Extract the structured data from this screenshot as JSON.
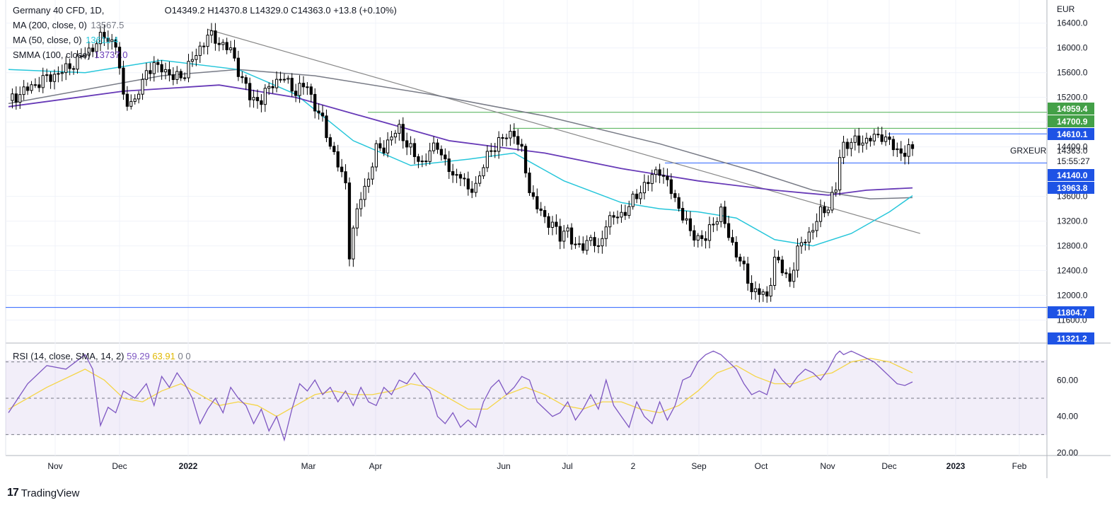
{
  "header": {
    "symbol": "Germany 40 CFD, 1D,",
    "open": "O14349.2",
    "high": "H14370.8",
    "low": "L14329.0",
    "close": "C14363.0",
    "change": "+13.8 (+0.10%)"
  },
  "indicators": [
    {
      "label": "MA (200, close, 0)",
      "value": "13567.5",
      "color": "#787b86"
    },
    {
      "label": "MA (50, close, 0)",
      "value": "13611.4",
      "color": "#26c6da"
    },
    {
      "label": "SMMA (100, close)",
      "value": "13737.0",
      "color": "#673ab7"
    }
  ],
  "rsi_legend": {
    "label": "RSI (14, close, SMA, 14, 2)",
    "rsi": "59.29",
    "sma": "63.91",
    "extra": "0  0"
  },
  "currency": "EUR",
  "symbol_tag": "GRXEUR",
  "countdown": "15:55:27",
  "last_price": "14363.0",
  "brand": "TradingView",
  "colors": {
    "ma200": "#787b86",
    "ma50": "#26c6da",
    "smma100": "#673ab7",
    "rsi": "#7e57c2",
    "rsi_sma": "#f5d547",
    "green_level": "#4caf50",
    "blue_level": "#2962ff",
    "up": "#ffffff",
    "down": "#000000"
  },
  "chart_data": {
    "type": "candlestick",
    "ylim": [
      11400,
      16500
    ],
    "y_ticks": [
      "16400.0",
      "16000.0",
      "15600.0",
      "15200.0",
      "14800.0",
      "14400.0",
      "13600.0",
      "13200.0",
      "12800.0",
      "12400.0",
      "12000.0",
      "11600.0"
    ],
    "x_ticks": [
      "Nov",
      "Dec",
      "2022",
      "Mar",
      "Apr",
      "Jun",
      "Jul",
      "2",
      "Sep",
      "Oct",
      "Nov",
      "Dec",
      "2023",
      "Feb"
    ],
    "levels": [
      {
        "value": 14959.4,
        "label": "14959.4",
        "color": "green"
      },
      {
        "value": 14700.9,
        "label": "14700.9",
        "color": "green"
      },
      {
        "value": 14610.1,
        "label": "14610.1",
        "color": "blue"
      },
      {
        "value": 14140.0,
        "label": "14140.0",
        "color": "blue"
      },
      {
        "value": 13963.8,
        "label": "13963.8",
        "color": "blue"
      },
      {
        "value": 11804.7,
        "label": "11804.7",
        "color": "blue"
      },
      {
        "value": 11321.2,
        "label": "11321.2",
        "color": "blue"
      }
    ],
    "close_path": [
      [
        0,
        15150
      ],
      [
        8,
        15450
      ],
      [
        15,
        15650
      ],
      [
        20,
        15900
      ],
      [
        25,
        16200
      ],
      [
        28,
        16050
      ],
      [
        30,
        15200
      ],
      [
        33,
        15100
      ],
      [
        36,
        15650
      ],
      [
        40,
        15700
      ],
      [
        43,
        15500
      ],
      [
        46,
        15600
      ],
      [
        49,
        15900
      ],
      [
        52,
        16200
      ],
      [
        55,
        16100
      ],
      [
        58,
        15950
      ],
      [
        61,
        15500
      ],
      [
        63,
        15200
      ],
      [
        66,
        15150
      ],
      [
        69,
        15450
      ],
      [
        72,
        15500
      ],
      [
        75,
        15300
      ],
      [
        78,
        15400
      ],
      [
        80,
        15050
      ],
      [
        82,
        14800
      ],
      [
        84,
        14450
      ],
      [
        86,
        14100
      ],
      [
        88,
        13800
      ],
      [
        89,
        12700
      ],
      [
        90,
        13050
      ],
      [
        92,
        13600
      ],
      [
        94,
        13900
      ],
      [
        96,
        14350
      ],
      [
        98,
        14400
      ],
      [
        100,
        14550
      ],
      [
        102,
        14700
      ],
      [
        104,
        14450
      ],
      [
        106,
        14250
      ],
      [
        108,
        14150
      ],
      [
        110,
        14300
      ],
      [
        112,
        14450
      ],
      [
        114,
        14150
      ],
      [
        116,
        13900
      ],
      [
        118,
        14000
      ],
      [
        120,
        13650
      ],
      [
        122,
        13800
      ],
      [
        124,
        14100
      ],
      [
        126,
        14350
      ],
      [
        128,
        14500
      ],
      [
        130,
        14550
      ],
      [
        132,
        14650
      ],
      [
        134,
        14300
      ],
      [
        136,
        13700
      ],
      [
        138,
        13450
      ],
      [
        140,
        13200
      ],
      [
        142,
        13200
      ],
      [
        144,
        12900
      ],
      [
        146,
        13100
      ],
      [
        148,
        12750
      ],
      [
        150,
        12800
      ],
      [
        152,
        12950
      ],
      [
        154,
        12700
      ],
      [
        156,
        13200
      ],
      [
        158,
        13250
      ],
      [
        160,
        13300
      ],
      [
        162,
        13450
      ],
      [
        164,
        13600
      ],
      [
        166,
        13800
      ],
      [
        168,
        13900
      ],
      [
        170,
        14050
      ],
      [
        172,
        13800
      ],
      [
        174,
        13550
      ],
      [
        176,
        13300
      ],
      [
        178,
        13000
      ],
      [
        180,
        12950
      ],
      [
        182,
        12900
      ],
      [
        184,
        13200
      ],
      [
        186,
        13350
      ],
      [
        188,
        12950
      ],
      [
        190,
        12700
      ],
      [
        192,
        12400
      ],
      [
        194,
        12100
      ],
      [
        196,
        12050
      ],
      [
        198,
        11950
      ],
      [
        200,
        12600
      ],
      [
        202,
        12400
      ],
      [
        204,
        12250
      ],
      [
        206,
        12700
      ],
      [
        208,
        12950
      ],
      [
        210,
        13050
      ],
      [
        212,
        13350
      ],
      [
        214,
        13450
      ],
      [
        216,
        13700
      ],
      [
        217,
        14250
      ],
      [
        218,
        14450
      ],
      [
        220,
        14450
      ],
      [
        222,
        14500
      ],
      [
        224,
        14500
      ],
      [
        226,
        14550
      ],
      [
        228,
        14600
      ],
      [
        230,
        14450
      ],
      [
        232,
        14350
      ],
      [
        234,
        14300
      ],
      [
        236,
        14363
      ]
    ],
    "ma200": [
      [
        0,
        15100
      ],
      [
        40,
        15550
      ],
      [
        60,
        15650
      ],
      [
        80,
        15550
      ],
      [
        110,
        15250
      ],
      [
        140,
        14900
      ],
      [
        170,
        14450
      ],
      [
        195,
        14000
      ],
      [
        210,
        13700
      ],
      [
        225,
        13560
      ],
      [
        236,
        13580
      ]
    ],
    "ma50": [
      [
        0,
        15650
      ],
      [
        20,
        15600
      ],
      [
        40,
        15800
      ],
      [
        60,
        15650
      ],
      [
        75,
        15250
      ],
      [
        90,
        14500
      ],
      [
        105,
        14100
      ],
      [
        120,
        14200
      ],
      [
        132,
        14300
      ],
      [
        145,
        13850
      ],
      [
        160,
        13500
      ],
      [
        170,
        13400
      ],
      [
        180,
        13350
      ],
      [
        190,
        13250
      ],
      [
        200,
        12900
      ],
      [
        210,
        12800
      ],
      [
        220,
        13000
      ],
      [
        230,
        13350
      ],
      [
        236,
        13611
      ]
    ],
    "smma100": [
      [
        0,
        15050
      ],
      [
        30,
        15300
      ],
      [
        55,
        15400
      ],
      [
        75,
        15200
      ],
      [
        95,
        14850
      ],
      [
        115,
        14500
      ],
      [
        140,
        14300
      ],
      [
        160,
        14050
      ],
      [
        180,
        13850
      ],
      [
        200,
        13700
      ],
      [
        214,
        13620
      ],
      [
        224,
        13700
      ],
      [
        236,
        13737
      ]
    ],
    "trendline": [
      [
        52,
        16300
      ],
      [
        238,
        13000
      ]
    ],
    "rsi_ylim": [
      20,
      80
    ],
    "rsi_ticks": [
      "60.00",
      "40.00",
      "20.00"
    ],
    "rsi_bands": [
      70,
      50,
      30
    ],
    "rsi": [
      [
        0,
        42
      ],
      [
        5,
        58
      ],
      [
        10,
        68
      ],
      [
        15,
        66
      ],
      [
        20,
        74
      ],
      [
        22,
        66
      ],
      [
        24,
        35
      ],
      [
        26,
        45
      ],
      [
        28,
        42
      ],
      [
        30,
        54
      ],
      [
        33,
        50
      ],
      [
        36,
        58
      ],
      [
        38,
        46
      ],
      [
        40,
        62
      ],
      [
        42,
        56
      ],
      [
        44,
        64
      ],
      [
        46,
        58
      ],
      [
        48,
        50
      ],
      [
        50,
        36
      ],
      [
        52,
        44
      ],
      [
        54,
        50
      ],
      [
        56,
        42
      ],
      [
        58,
        56
      ],
      [
        60,
        50
      ],
      [
        62,
        46
      ],
      [
        64,
        36
      ],
      [
        66,
        44
      ],
      [
        68,
        32
      ],
      [
        70,
        40
      ],
      [
        72,
        27
      ],
      [
        74,
        44
      ],
      [
        76,
        58
      ],
      [
        78,
        54
      ],
      [
        80,
        60
      ],
      [
        82,
        52
      ],
      [
        84,
        56
      ],
      [
        86,
        48
      ],
      [
        88,
        54
      ],
      [
        90,
        46
      ],
      [
        92,
        56
      ],
      [
        94,
        48
      ],
      [
        96,
        46
      ],
      [
        98,
        56
      ],
      [
        100,
        52
      ],
      [
        102,
        60
      ],
      [
        104,
        58
      ],
      [
        106,
        64
      ],
      [
        108,
        58
      ],
      [
        110,
        54
      ],
      [
        112,
        40
      ],
      [
        114,
        36
      ],
      [
        116,
        42
      ],
      [
        118,
        34
      ],
      [
        120,
        38
      ],
      [
        122,
        34
      ],
      [
        124,
        48
      ],
      [
        126,
        56
      ],
      [
        128,
        60
      ],
      [
        130,
        52
      ],
      [
        132,
        56
      ],
      [
        134,
        62
      ],
      [
        136,
        60
      ],
      [
        138,
        48
      ],
      [
        140,
        44
      ],
      [
        142,
        40
      ],
      [
        144,
        42
      ],
      [
        146,
        48
      ],
      [
        148,
        38
      ],
      [
        150,
        44
      ],
      [
        152,
        52
      ],
      [
        154,
        44
      ],
      [
        156,
        60
      ],
      [
        158,
        46
      ],
      [
        160,
        40
      ],
      [
        162,
        34
      ],
      [
        164,
        48
      ],
      [
        166,
        40
      ],
      [
        168,
        36
      ],
      [
        170,
        48
      ],
      [
        172,
        38
      ],
      [
        174,
        46
      ],
      [
        176,
        60
      ],
      [
        178,
        62
      ],
      [
        180,
        70
      ],
      [
        182,
        74
      ],
      [
        184,
        76
      ],
      [
        186,
        74
      ],
      [
        188,
        70
      ],
      [
        190,
        66
      ],
      [
        192,
        58
      ],
      [
        194,
        52
      ],
      [
        196,
        54
      ],
      [
        198,
        52
      ],
      [
        200,
        66
      ],
      [
        202,
        60
      ],
      [
        204,
        56
      ],
      [
        206,
        62
      ],
      [
        208,
        66
      ],
      [
        210,
        64
      ],
      [
        212,
        60
      ],
      [
        214,
        66
      ],
      [
        216,
        74
      ],
      [
        217,
        76
      ],
      [
        218,
        74
      ],
      [
        220,
        76
      ],
      [
        222,
        74
      ],
      [
        224,
        72
      ],
      [
        226,
        70
      ],
      [
        228,
        66
      ],
      [
        230,
        62
      ],
      [
        232,
        58
      ],
      [
        234,
        57
      ],
      [
        236,
        59
      ]
    ],
    "rsi_sma": [
      [
        0,
        44
      ],
      [
        10,
        56
      ],
      [
        20,
        66
      ],
      [
        25,
        60
      ],
      [
        30,
        50
      ],
      [
        35,
        48
      ],
      [
        40,
        54
      ],
      [
        45,
        58
      ],
      [
        50,
        52
      ],
      [
        55,
        46
      ],
      [
        60,
        48
      ],
      [
        65,
        46
      ],
      [
        70,
        40
      ],
      [
        75,
        46
      ],
      [
        80,
        52
      ],
      [
        85,
        54
      ],
      [
        90,
        52
      ],
      [
        95,
        52
      ],
      [
        100,
        54
      ],
      [
        105,
        58
      ],
      [
        110,
        56
      ],
      [
        115,
        50
      ],
      [
        120,
        44
      ],
      [
        125,
        44
      ],
      [
        130,
        52
      ],
      [
        135,
        56
      ],
      [
        140,
        52
      ],
      [
        145,
        46
      ],
      [
        150,
        44
      ],
      [
        155,
        48
      ],
      [
        160,
        48
      ],
      [
        165,
        44
      ],
      [
        170,
        42
      ],
      [
        175,
        46
      ],
      [
        180,
        54
      ],
      [
        185,
        64
      ],
      [
        190,
        68
      ],
      [
        195,
        62
      ],
      [
        200,
        58
      ],
      [
        205,
        58
      ],
      [
        210,
        62
      ],
      [
        215,
        64
      ],
      [
        220,
        70
      ],
      [
        225,
        72
      ],
      [
        230,
        70
      ],
      [
        236,
        64
      ]
    ]
  }
}
